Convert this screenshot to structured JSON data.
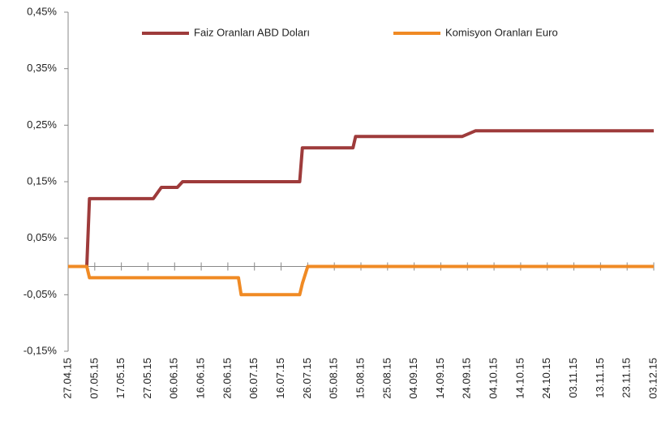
{
  "chart_data": {
    "type": "line",
    "x": [
      "27.04.15",
      "04.05.15",
      "05.05.15",
      "29.05.15",
      "01.06.15",
      "07.06.15",
      "09.06.15",
      "30.06.15",
      "01.07.15",
      "23.07.15",
      "24.07.15",
      "26.07.15",
      "12.08.15",
      "13.08.15",
      "22.09.15",
      "27.09.15",
      "03.12.15"
    ],
    "series": [
      {
        "name": "Faiz Oranları ABD Doları",
        "color": "#9e3b3b",
        "values": [
          0,
          0,
          0.12,
          0.12,
          0.14,
          0.14,
          0.15,
          0.15,
          0.15,
          0.15,
          0.21,
          0.21,
          0.21,
          0.23,
          0.23,
          0.24,
          0.24
        ]
      },
      {
        "name": "Komisyon  Oranları  Euro",
        "color": "#f08a24",
        "values": [
          0,
          0,
          -0.02,
          -0.02,
          -0.02,
          -0.02,
          -0.02,
          -0.02,
          -0.05,
          -0.05,
          -0.03,
          0,
          0,
          0,
          0,
          0,
          0
        ]
      }
    ],
    "xlim": [
      "27.04.15",
      "03.12.15"
    ],
    "xticks": [
      "27.04.15",
      "07.05.15",
      "17.05.15",
      "27.05.15",
      "06.06.15",
      "16.06.15",
      "26.06.15",
      "06.07.15",
      "16.07.15",
      "26.07.15",
      "05.08.15",
      "15.08.15",
      "25.08.15",
      "04.09.15",
      "14.09.15",
      "24.09.15",
      "04.10.15",
      "14.10.15",
      "24.10.15",
      "03.11.15",
      "13.11.15",
      "23.11.15",
      "03.12.15"
    ],
    "ylim": [
      -0.15,
      0.45
    ],
    "yticks": [
      {
        "value": -0.15,
        "label": "-0,15%"
      },
      {
        "value": -0.05,
        "label": "-0,05%"
      },
      {
        "value": 0.05,
        "label": "0,05%"
      },
      {
        "value": 0.15,
        "label": "0,15%"
      },
      {
        "value": 0.25,
        "label": "0,25%"
      },
      {
        "value": 0.35,
        "label": "0,35%"
      },
      {
        "value": 0.45,
        "label": "0,45%"
      }
    ],
    "legend": "top"
  }
}
